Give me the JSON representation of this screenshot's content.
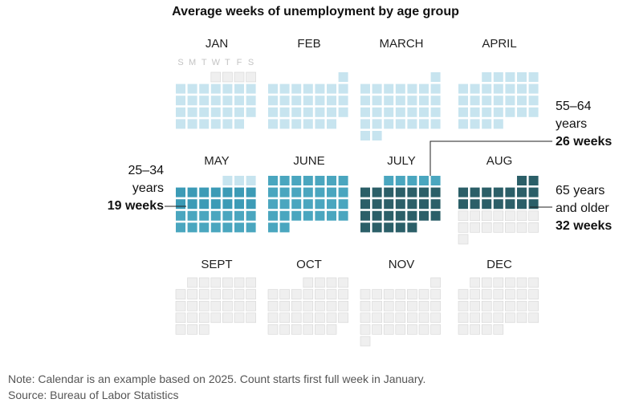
{
  "title": "Average weeks of unemployment by age group",
  "weekday_labels": [
    "S",
    "M",
    "T",
    "W",
    "T",
    "F",
    "S"
  ],
  "colors": {
    "background": "#ffffff",
    "empty_fill": "#efefef",
    "empty_stroke": "#d4d4d4",
    "highlight_fill": "#c7e4ef",
    "age_25_34": "#3c9bb6",
    "age_55_64": "#4aa6bf",
    "age_65_older": "#2b5f68",
    "callout_line": "#222222"
  },
  "annotations": {
    "age_25_34": {
      "label_line1": "25–34",
      "label_line2": "years",
      "value": "19 weeks"
    },
    "age_55_64": {
      "label_line1": "55–64",
      "label_line2": "years",
      "value": "26 weeks"
    },
    "age_65_older": {
      "label_line1": "65 years",
      "label_line2": "and older",
      "value": "32 weeks"
    }
  },
  "note": "Note: Calendar is an example based on 2025. Count starts first full week in January.",
  "source": "Source: Bureau of Labor Statistics",
  "chart_data": {
    "type": "calendar",
    "year": 2025,
    "title": "Average weeks of unemployment by age group",
    "count_start": "first full week in January",
    "months": [
      "JAN",
      "FEB",
      "MARCH",
      "APRIL",
      "MAY",
      "JUNE",
      "JULY",
      "AUG",
      "SEPT",
      "OCT",
      "NOV",
      "DEC"
    ],
    "series": [
      {
        "name": "25–34 years",
        "weeks": 19
      },
      {
        "name": "55–64 years",
        "weeks": 26
      },
      {
        "name": "65 years and older",
        "weeks": 32
      }
    ]
  }
}
